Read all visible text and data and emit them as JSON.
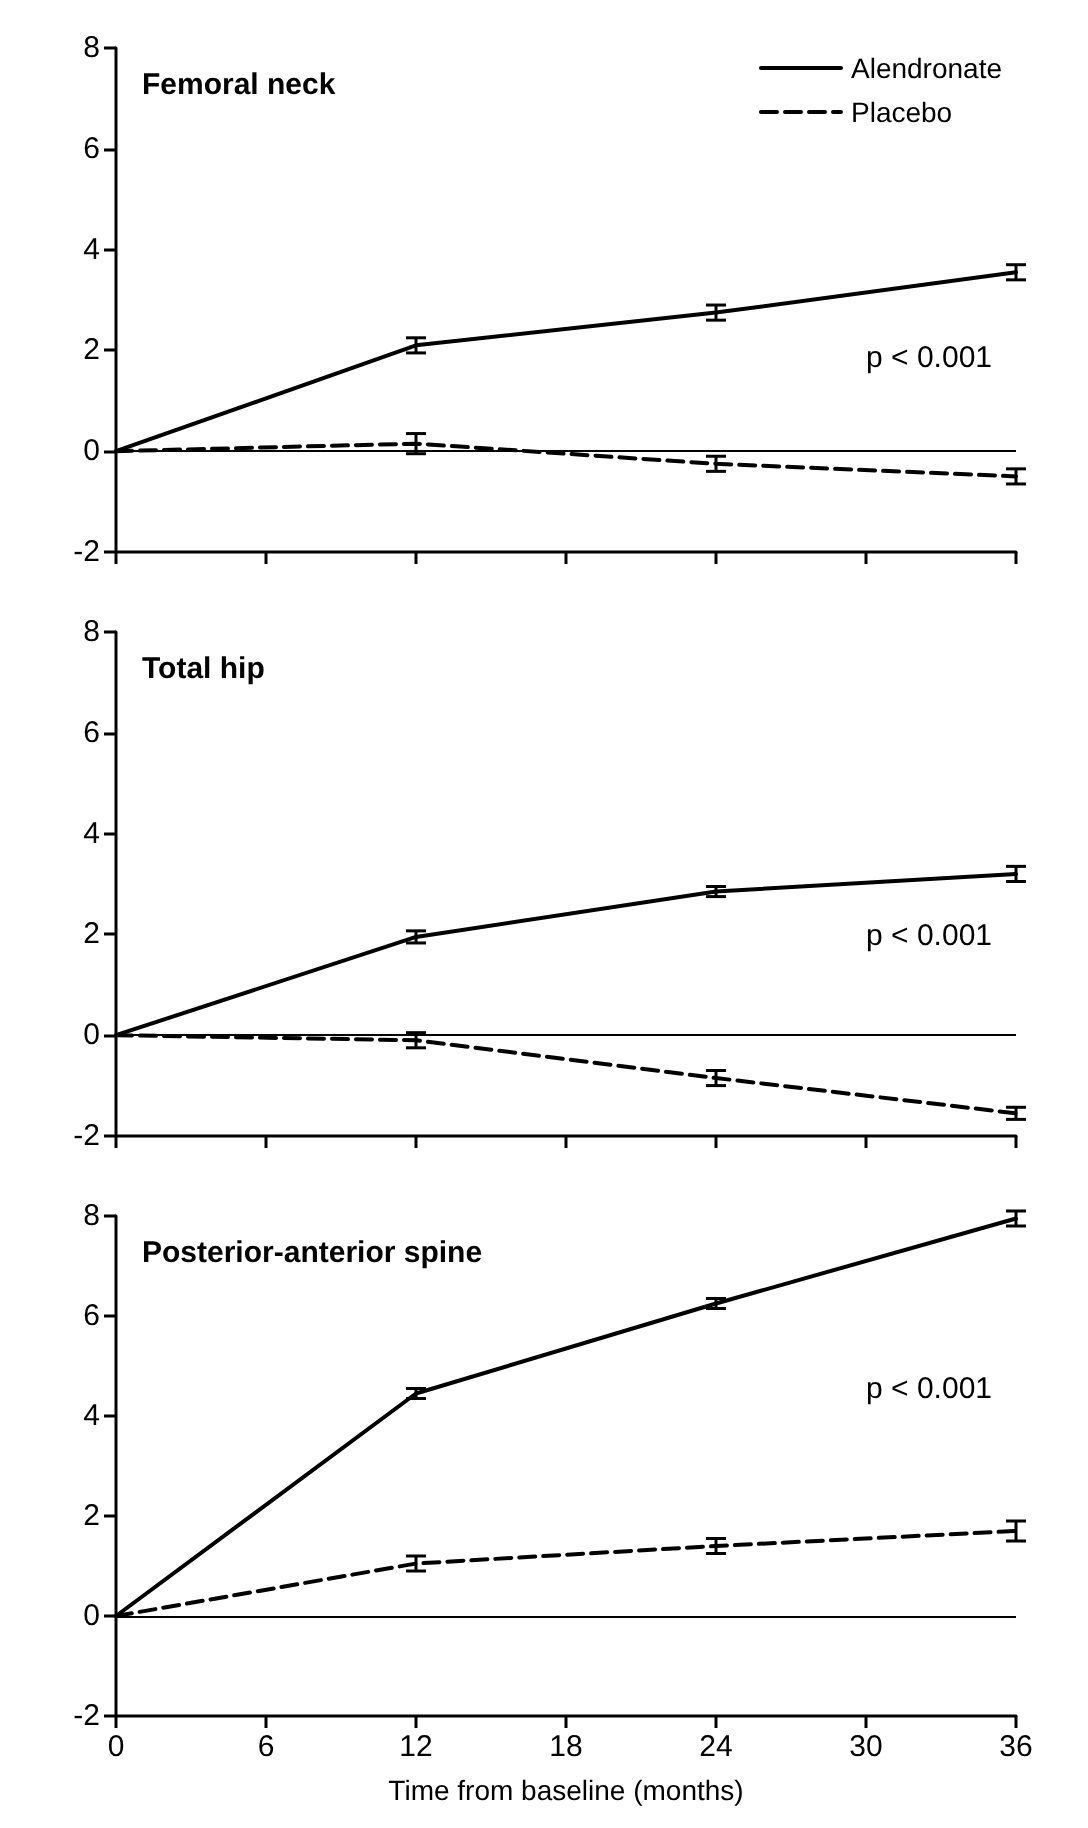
{
  "chart_data": [
    {
      "type": "line",
      "title": "Femoral neck",
      "x": [
        0,
        12,
        24,
        36
      ],
      "xlim": [
        0,
        36
      ],
      "xticks": [
        0,
        6,
        12,
        18,
        24,
        30,
        36
      ],
      "ylim": [
        -2,
        8
      ],
      "yticks": [
        -2,
        0,
        2,
        4,
        6,
        8
      ],
      "tick_labels": "y",
      "marker": "none",
      "grid": false,
      "legend": "top right",
      "annotations": [
        "p < 0.001"
      ],
      "ref_lines": [
        {
          "axis": "y",
          "value": 0
        }
      ],
      "series": [
        {
          "name": "Alendronate",
          "color": "#000000",
          "line_style": "solid",
          "values": [
            0,
            2.1,
            2.75,
            3.55
          ],
          "errors": [
            null,
            0.15,
            0.15,
            0.15
          ]
        },
        {
          "name": "Placebo",
          "color": "#000000",
          "line_style": "dashed",
          "values": [
            0,
            0.15,
            -0.25,
            -0.5
          ],
          "errors": [
            null,
            0.2,
            0.15,
            0.15
          ]
        }
      ]
    },
    {
      "type": "line",
      "title": "Total hip",
      "x": [
        0,
        12,
        24,
        36
      ],
      "xlim": [
        0,
        36
      ],
      "xticks": [
        0,
        6,
        12,
        18,
        24,
        30,
        36
      ],
      "ylim": [
        -2,
        8
      ],
      "yticks": [
        -2,
        0,
        2,
        4,
        6,
        8
      ],
      "tick_labels": "y",
      "marker": "none",
      "grid": false,
      "annotations": [
        "p < 0.001"
      ],
      "ref_lines": [
        {
          "axis": "y",
          "value": 0
        }
      ],
      "series": [
        {
          "color": "#000000",
          "line_style": "solid",
          "values": [
            0,
            1.95,
            2.85,
            3.2
          ],
          "errors": [
            null,
            0.12,
            0.1,
            0.15
          ]
        },
        {
          "color": "#000000",
          "line_style": "dashed",
          "values": [
            0,
            -0.1,
            -0.85,
            -1.55
          ],
          "errors": [
            null,
            0.15,
            0.15,
            0.12
          ]
        }
      ]
    },
    {
      "type": "line",
      "title": "Posterior-anterior spine",
      "xlabel": "Time from baseline (months)",
      "x": [
        0,
        12,
        24,
        36
      ],
      "xlim": [
        0,
        36
      ],
      "xticks": [
        0,
        6,
        12,
        18,
        24,
        30,
        36
      ],
      "ylim": [
        -2,
        8
      ],
      "yticks": [
        -2,
        0,
        2,
        4,
        6,
        8
      ],
      "marker": "none",
      "grid": false,
      "annotations": [
        "p < 0.001"
      ],
      "ref_lines": [
        {
          "axis": "y",
          "value": 0
        }
      ],
      "series": [
        {
          "color": "#000000",
          "line_style": "solid",
          "values": [
            0,
            4.45,
            6.25,
            7.95
          ],
          "errors": [
            null,
            0.1,
            0.1,
            0.15
          ]
        },
        {
          "color": "#000000",
          "line_style": "dashed",
          "values": [
            0,
            1.05,
            1.4,
            1.7
          ],
          "errors": [
            null,
            0.15,
            0.15,
            0.2
          ]
        }
      ]
    }
  ]
}
